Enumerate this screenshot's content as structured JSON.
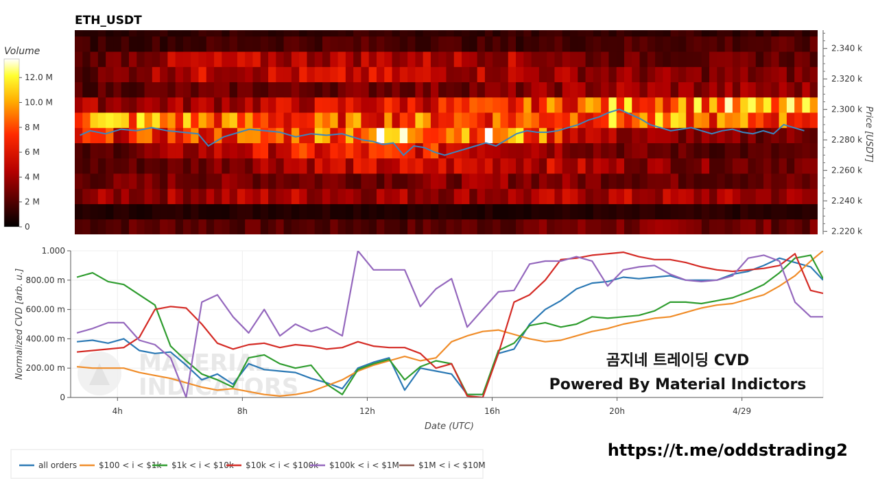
{
  "title": "ETH_USDT",
  "colors": {
    "all_orders": "#2a78b4",
    "s100_1k": "#f08c28",
    "s1k_10k": "#2e9c2e",
    "s10k_100k": "#d42a24",
    "s100k_1M": "#9467bd",
    "s1M_10M": "#8c564b",
    "price_line": "#3a86c0"
  },
  "annotation": {
    "line1": "곰지네 트레이딩 CVD",
    "line2": "Powered By Material Indictors"
  },
  "watermark": {
    "line1": "MATERIAL",
    "line2": "INDICATORS"
  },
  "url": "https://t.me/oddstrading2",
  "chart_data": [
    {
      "type": "heatmap",
      "title": "ETH_USDT",
      "ylabel": "Price [USDT]",
      "colorbar_label": "Volume",
      "colorbar_ticks": [
        "0",
        "2 M",
        "4 M",
        "6 M",
        "8 M",
        "10.0 M",
        "12.0 M"
      ],
      "colorbar_range": [
        0,
        13.5
      ],
      "y_ticks": [
        "2.220 k",
        "2.240 k",
        "2.260 k",
        "2.280 k",
        "2.300 k",
        "2.320 k",
        "2.340 k"
      ],
      "ylim": [
        2.218,
        2.352
      ],
      "price_bands": [
        2.218,
        2.228,
        2.238,
        2.248,
        2.258,
        2.268,
        2.278,
        2.288,
        2.298,
        2.308,
        2.318,
        2.328,
        2.338,
        2.348,
        2.352
      ],
      "band_volume_millions": [
        [
          2.0,
          2.5,
          2.0,
          2.0,
          2.5,
          3.0,
          3.0,
          2.5
        ],
        [
          0.8,
          0.9,
          1.0,
          0.9,
          0.8,
          0.9,
          1.0,
          0.8
        ],
        [
          3.5,
          4.0,
          4.5,
          4.0,
          4.0,
          4.5,
          4.0,
          3.5
        ],
        [
          2.5,
          3.0,
          3.0,
          3.0,
          3.5,
          3.0,
          2.5,
          2.5
        ],
        [
          2.0,
          2.5,
          5.0,
          5.0,
          5.5,
          4.0,
          3.0,
          3.0
        ],
        [
          1.5,
          4.0,
          6.0,
          6.5,
          5.5,
          3.0,
          2.0,
          2.0
        ],
        [
          6.0,
          7.0,
          8.0,
          11.0,
          10.0,
          4.0,
          3.0,
          3.0
        ],
        [
          10.0,
          9.0,
          7.0,
          8.0,
          8.0,
          9.0,
          8.0,
          8.0
        ],
        [
          4.0,
          4.0,
          5.0,
          6.0,
          6.5,
          9.0,
          9.5,
          9.0
        ],
        [
          2.0,
          2.5,
          2.5,
          3.0,
          3.0,
          4.0,
          3.5,
          3.5
        ],
        [
          2.0,
          5.0,
          5.0,
          5.0,
          4.5,
          3.5,
          3.0,
          3.0
        ],
        [
          2.0,
          4.5,
          4.5,
          4.5,
          4.5,
          2.5,
          2.5,
          2.5
        ],
        [
          1.5,
          1.5,
          2.0,
          2.0,
          1.5,
          2.0,
          2.0,
          2.0
        ],
        [
          1.0,
          1.2,
          1.2,
          1.3,
          1.2,
          1.4,
          1.3,
          1.2
        ]
      ],
      "price_series": {
        "x": [
          "02:40",
          "03:00",
          "03:30",
          "04:00",
          "04:30",
          "05:00",
          "05:30",
          "06:00",
          "06:30",
          "06:50",
          "07:20",
          "07:50",
          "08:10",
          "08:40",
          "09:10",
          "09:40",
          "10:10",
          "10:40",
          "11:10",
          "11:30",
          "11:50",
          "12:10",
          "12:30",
          "12:50",
          "13:10",
          "13:30",
          "13:50",
          "14:10",
          "14:30",
          "14:50",
          "15:10",
          "15:30",
          "15:50",
          "16:10",
          "16:30",
          "16:50",
          "17:10",
          "17:30",
          "17:50",
          "18:10",
          "18:30",
          "18:50",
          "19:10",
          "19:30",
          "19:50",
          "20:10",
          "20:30",
          "20:50",
          "21:10",
          "21:30",
          "21:50",
          "22:10",
          "22:30",
          "22:50",
          "23:10",
          "23:30",
          "23:50",
          "00:10",
          "00:30",
          "00:50",
          "01:10",
          "01:30",
          "01:50",
          "02:10"
        ],
        "y": [
          2.283,
          2.286,
          2.284,
          2.287,
          2.286,
          2.288,
          2.286,
          2.285,
          2.284,
          2.276,
          2.282,
          2.285,
          2.287,
          2.286,
          2.285,
          2.282,
          2.284,
          2.283,
          2.284,
          2.282,
          2.28,
          2.279,
          2.277,
          2.278,
          2.27,
          2.276,
          2.275,
          2.272,
          2.27,
          2.272,
          2.274,
          2.276,
          2.278,
          2.276,
          2.28,
          2.284,
          2.286,
          2.285,
          2.285,
          2.286,
          2.288,
          2.29,
          2.293,
          2.295,
          2.298,
          2.3,
          2.297,
          2.294,
          2.29,
          2.288,
          2.286,
          2.287,
          2.288,
          2.286,
          2.284,
          2.286,
          2.287,
          2.285,
          2.284,
          2.286,
          2.284,
          2.29,
          2.288,
          2.286
        ]
      }
    },
    {
      "type": "line",
      "xlabel": "Date (UTC)",
      "ylabel": "Normalized CVD [arb. u.]",
      "x_ticks": [
        "4h",
        "8h",
        "12h",
        "16h",
        "20h",
        "4/29"
      ],
      "x_tick_hours": [
        4,
        8,
        12,
        16,
        20,
        24
      ],
      "xlim_hours": [
        2.5,
        26.6
      ],
      "y_ticks": [
        "0",
        "200.00 m",
        "400.00 m",
        "600.00 m",
        "800.00 m",
        "1.000"
      ],
      "ylim": [
        0,
        1.0
      ],
      "x_hours": [
        2.7,
        3.2,
        3.7,
        4.2,
        4.7,
        5.2,
        5.7,
        6.2,
        6.7,
        7.2,
        7.7,
        8.2,
        8.7,
        9.2,
        9.7,
        10.2,
        10.7,
        11.2,
        11.7,
        12.2,
        12.7,
        13.2,
        13.7,
        14.2,
        14.7,
        15.2,
        15.7,
        16.2,
        16.7,
        17.2,
        17.7,
        18.2,
        18.7,
        19.2,
        19.7,
        20.2,
        20.7,
        21.2,
        21.7,
        22.2,
        22.7,
        23.2,
        23.7,
        24.2,
        24.7,
        25.2,
        25.7,
        26.2,
        26.6
      ],
      "series": [
        {
          "name": "all orders",
          "color_key": "all_orders",
          "values": [
            0.38,
            0.39,
            0.37,
            0.4,
            0.32,
            0.3,
            0.31,
            0.22,
            0.12,
            0.16,
            0.09,
            0.23,
            0.19,
            0.18,
            0.17,
            0.13,
            0.1,
            0.06,
            0.2,
            0.24,
            0.27,
            0.05,
            0.2,
            0.18,
            0.16,
            0.02,
            0.02,
            0.3,
            0.33,
            0.5,
            0.6,
            0.66,
            0.74,
            0.78,
            0.79,
            0.82,
            0.81,
            0.82,
            0.83,
            0.8,
            0.8,
            0.8,
            0.84,
            0.86,
            0.9,
            0.95,
            0.92,
            0.89,
            0.8
          ]
        },
        {
          "name": "$100 < i < $1k",
          "color_key": "s100_1k",
          "values": [
            0.21,
            0.2,
            0.2,
            0.2,
            0.17,
            0.15,
            0.13,
            0.1,
            0.07,
            0.05,
            0.06,
            0.04,
            0.02,
            0.01,
            0.02,
            0.04,
            0.08,
            0.12,
            0.18,
            0.22,
            0.25,
            0.28,
            0.25,
            0.27,
            0.38,
            0.42,
            0.45,
            0.46,
            0.43,
            0.4,
            0.38,
            0.39,
            0.42,
            0.45,
            0.47,
            0.5,
            0.52,
            0.54,
            0.55,
            0.58,
            0.61,
            0.63,
            0.64,
            0.67,
            0.7,
            0.76,
            0.83,
            0.93,
            1.0
          ]
        },
        {
          "name": "$1k < i < $10k",
          "color_key": "s1k_10k",
          "values": [
            0.82,
            0.85,
            0.79,
            0.77,
            0.7,
            0.63,
            0.35,
            0.25,
            0.16,
            0.12,
            0.07,
            0.27,
            0.29,
            0.23,
            0.2,
            0.22,
            0.09,
            0.02,
            0.19,
            0.23,
            0.26,
            0.12,
            0.21,
            0.25,
            0.23,
            0.02,
            0.02,
            0.32,
            0.37,
            0.49,
            0.51,
            0.48,
            0.5,
            0.55,
            0.54,
            0.55,
            0.56,
            0.59,
            0.65,
            0.65,
            0.64,
            0.66,
            0.68,
            0.72,
            0.77,
            0.85,
            0.95,
            0.97,
            0.81
          ]
        },
        {
          "name": "$10k < i < $100k",
          "color_key": "s10k_100k",
          "values": [
            0.31,
            0.32,
            0.33,
            0.34,
            0.41,
            0.6,
            0.62,
            0.61,
            0.5,
            0.37,
            0.33,
            0.36,
            0.37,
            0.34,
            0.36,
            0.35,
            0.33,
            0.34,
            0.38,
            0.35,
            0.34,
            0.34,
            0.3,
            0.2,
            0.23,
            0.01,
            0.0,
            0.3,
            0.65,
            0.7,
            0.8,
            0.94,
            0.95,
            0.97,
            0.98,
            0.99,
            0.96,
            0.94,
            0.94,
            0.92,
            0.89,
            0.87,
            0.86,
            0.87,
            0.88,
            0.9,
            0.98,
            0.73,
            0.71
          ]
        },
        {
          "name": "$100k < i < $1M",
          "color_key": "s100k_1M",
          "values": [
            0.44,
            0.47,
            0.51,
            0.51,
            0.39,
            0.36,
            0.27,
            0.0,
            0.65,
            0.7,
            0.55,
            0.44,
            0.6,
            0.42,
            0.5,
            0.45,
            0.48,
            0.42,
            1.0,
            0.87,
            0.87,
            0.87,
            0.62,
            0.74,
            0.81,
            0.48,
            0.6,
            0.72,
            0.73,
            0.91,
            0.93,
            0.93,
            0.96,
            0.93,
            0.76,
            0.87,
            0.89,
            0.9,
            0.84,
            0.8,
            0.79,
            0.8,
            0.83,
            0.95,
            0.97,
            0.93,
            0.65,
            0.55,
            0.55
          ]
        },
        {
          "name": "$1M < i < $10M",
          "color_key": "s1M_10M",
          "values": []
        }
      ]
    }
  ],
  "legend": {
    "items": [
      {
        "label": "all orders",
        "color_key": "all_orders"
      },
      {
        "label": "$100 < i < $1k",
        "color_key": "s100_1k"
      },
      {
        "label": "$1k < i < $10k",
        "color_key": "s1k_10k"
      },
      {
        "label": "$10k < i < $100k",
        "color_key": "s10k_100k"
      },
      {
        "label": "$100k < i < $1M",
        "color_key": "s100k_1M"
      },
      {
        "label": "$1M < i < $10M",
        "color_key": "s1M_10M"
      }
    ]
  }
}
